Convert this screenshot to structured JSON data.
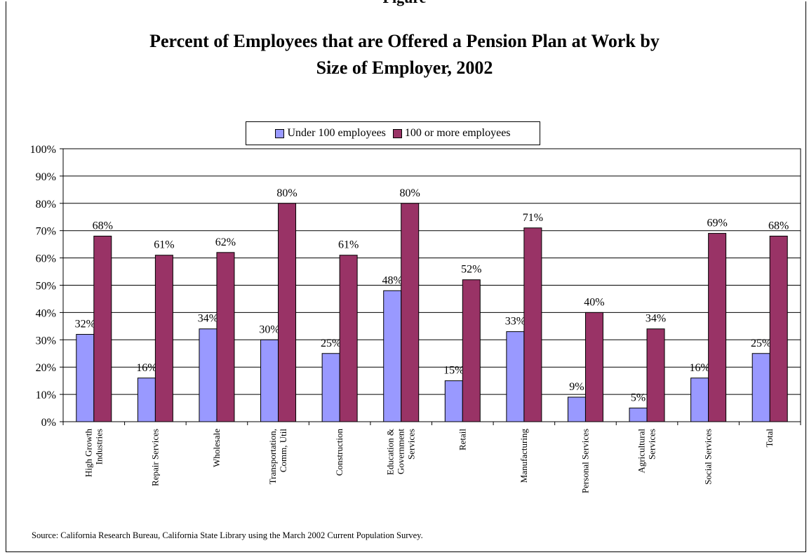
{
  "top_fragment": "Figure",
  "chart_data": {
    "type": "bar",
    "title": "Percent of Employees that are Offered a Pension Plan at Work by Size of Employer, 2002",
    "title_lines": [
      "Percent of Employees that are Offered a Pension Plan at Work by",
      "Size of Employer, 2002"
    ],
    "categories": [
      [
        "High Growth",
        "Industries"
      ],
      [
        "Repair Services"
      ],
      [
        "Wholesale"
      ],
      [
        "Transportation,",
        "Comm, Util"
      ],
      [
        "Construction"
      ],
      [
        "Education &",
        "Government",
        "Services"
      ],
      [
        "Retail"
      ],
      [
        "Manufacturing"
      ],
      [
        "Personal Services"
      ],
      [
        "Agricultural",
        "Services"
      ],
      [
        "Social Services"
      ],
      [
        "Total"
      ]
    ],
    "series": [
      {
        "name": "Under 100 employees",
        "color": "#9999ff",
        "values": [
          32,
          16,
          34,
          30,
          25,
          48,
          15,
          33,
          9,
          5,
          16,
          25
        ]
      },
      {
        "name": "100 or more employees",
        "color": "#993366",
        "values": [
          68,
          61,
          62,
          80,
          61,
          80,
          52,
          71,
          40,
          34,
          69,
          68
        ]
      }
    ],
    "ylim": [
      0,
      100
    ],
    "yticks": [
      "0%",
      "10%",
      "20%",
      "30%",
      "40%",
      "50%",
      "60%",
      "70%",
      "80%",
      "90%",
      "100%"
    ],
    "value_suffix": "%",
    "grid": true,
    "legend_position": "top-center"
  },
  "source": "Source:  California Research Bureau, California State Library using the March 2002 Current Population Survey."
}
